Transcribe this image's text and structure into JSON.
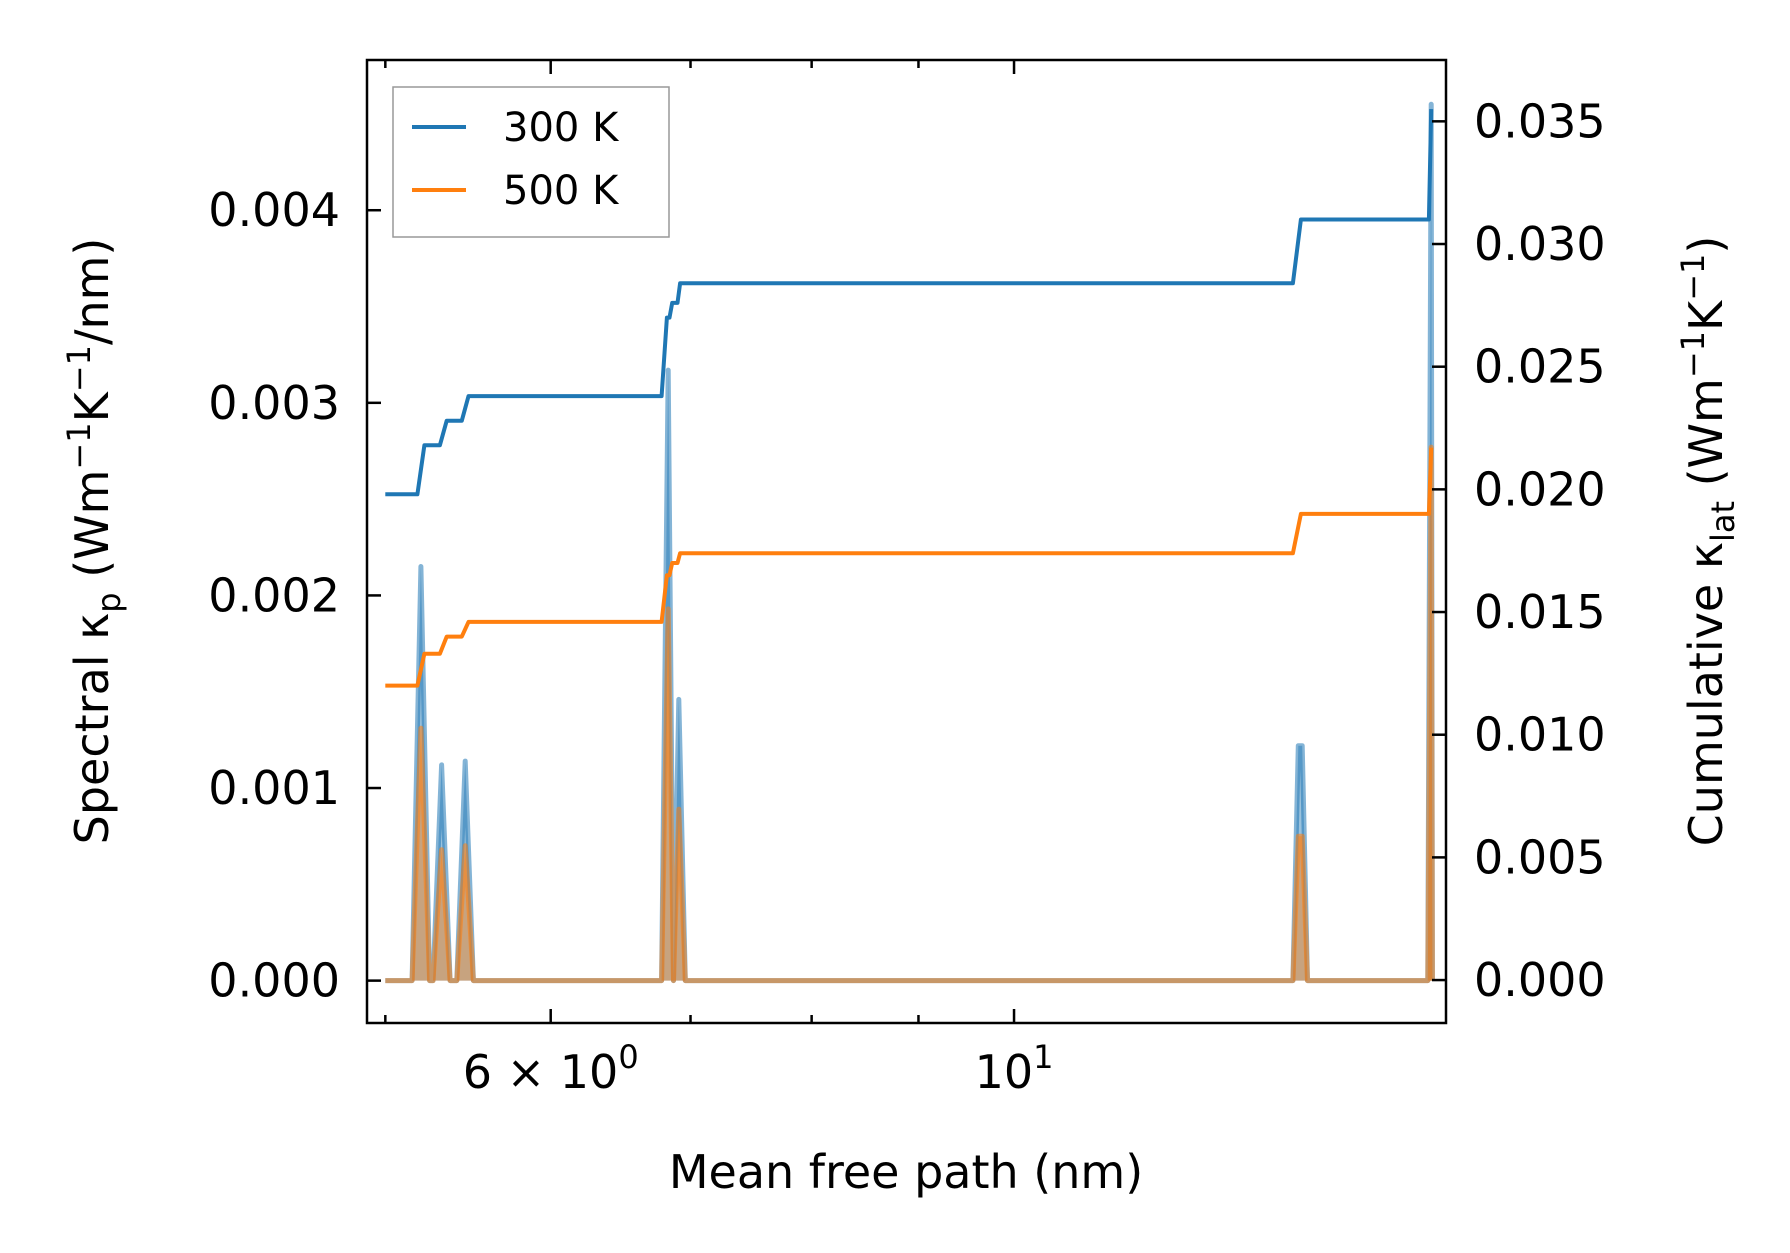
{
  "colors": {
    "series_300K": "#1f77b4",
    "series_500K": "#ff7f0e",
    "axes": "#000000",
    "legend_border": "#999999"
  },
  "chart_data": {
    "type": "line",
    "x_scale": "log",
    "xlabel": "Mean free path (nm)",
    "xlim": [
      4.9,
      16.1
    ],
    "x_ticks": [
      {
        "value": 6,
        "base": "6",
        "mult": " × ",
        "mant": "10",
        "exp": "0"
      },
      {
        "value": 10,
        "base": "",
        "mult": "",
        "mant": "10",
        "exp": "1"
      }
    ],
    "x_minor_ticks": [
      5,
      7,
      8,
      9
    ],
    "y_left": {
      "label_main": "Spectral κ",
      "label_sub": "p",
      "label_unit_parts": [
        " (Wm",
        "−1",
        "K",
        "−1",
        "/nm)"
      ],
      "lim": [
        -0.00022,
        0.00478
      ],
      "ticks": [
        0.0,
        0.001,
        0.002,
        0.003,
        0.004
      ],
      "tick_labels": [
        "0.000",
        "0.001",
        "0.002",
        "0.003",
        "0.004"
      ]
    },
    "y_right": {
      "label_main": "Cumulative κ",
      "label_sub": "lat",
      "label_unit_parts": [
        " (Wm",
        "−1",
        "K",
        "−1",
        ")"
      ],
      "lim": [
        -0.00175,
        0.0375
      ],
      "ticks": [
        0.0,
        0.005,
        0.01,
        0.015,
        0.02,
        0.025,
        0.03,
        0.035
      ],
      "tick_labels": [
        "0.000",
        "0.005",
        "0.010",
        "0.015",
        "0.020",
        "0.025",
        "0.030",
        "0.035"
      ]
    },
    "legend": {
      "position": "top-left",
      "entries": [
        "300 K",
        "500 K"
      ]
    },
    "grid": false,
    "series": [
      {
        "name": "300 K",
        "axis": "right",
        "color": "#1f77b4",
        "x": [
          5.0,
          5.18,
          5.22,
          5.31,
          5.35,
          5.44,
          5.48,
          6.78,
          6.82,
          6.84,
          6.86,
          6.9,
          6.92,
          13.6,
          13.72,
          15.8,
          15.84
        ],
        "y": [
          0.0198,
          0.0198,
          0.0218,
          0.0218,
          0.0228,
          0.0228,
          0.0238,
          0.0238,
          0.027,
          0.027,
          0.0276,
          0.0276,
          0.0284,
          0.0284,
          0.031,
          0.031,
          0.0355
        ]
      },
      {
        "name": "500 K",
        "axis": "right",
        "color": "#ff7f0e",
        "x": [
          5.0,
          5.18,
          5.22,
          5.31,
          5.35,
          5.44,
          5.48,
          6.78,
          6.82,
          6.84,
          6.86,
          6.9,
          6.92,
          13.6,
          13.72,
          15.8,
          15.84
        ],
        "y": [
          0.012,
          0.012,
          0.0133,
          0.0133,
          0.014,
          0.014,
          0.0146,
          0.0146,
          0.0165,
          0.0165,
          0.017,
          0.017,
          0.0174,
          0.0174,
          0.019,
          0.019,
          0.0217
        ]
      },
      {
        "name": "",
        "axis": "left",
        "color": "#1f77b4",
        "fill": true,
        "x": [
          5.0,
          5.15,
          5.2,
          5.25,
          5.27,
          5.32,
          5.37,
          5.41,
          5.46,
          5.51,
          6.78,
          6.83,
          6.87,
          6.91,
          6.96,
          13.6,
          13.68,
          13.74,
          13.82,
          15.72,
          15.78,
          15.84,
          15.86
        ],
        "y": [
          0.0,
          0.0,
          0.00215,
          0.0,
          0.0,
          0.00112,
          0.0,
          0.0,
          0.00114,
          0.0,
          0.0,
          0.00317,
          0.0,
          0.00146,
          0.0,
          0.0,
          0.00122,
          0.00122,
          0.0,
          0.0,
          0.0,
          0.00455,
          0.0
        ]
      },
      {
        "name": "",
        "axis": "left",
        "color": "#ff7f0e",
        "fill": true,
        "x": [
          5.0,
          5.15,
          5.2,
          5.25,
          5.27,
          5.32,
          5.37,
          5.41,
          5.46,
          5.51,
          6.78,
          6.83,
          6.87,
          6.91,
          6.96,
          13.6,
          13.68,
          13.74,
          13.82,
          15.72,
          15.78,
          15.84,
          15.86
        ],
        "y": [
          0.0,
          0.0,
          0.00131,
          0.0,
          0.0,
          0.00068,
          0.0,
          0.0,
          0.0007,
          0.0,
          0.0,
          0.00193,
          0.0,
          0.00089,
          0.0,
          0.0,
          0.00075,
          0.00075,
          0.0,
          0.0,
          0.0,
          0.00277,
          0.0
        ]
      }
    ]
  }
}
